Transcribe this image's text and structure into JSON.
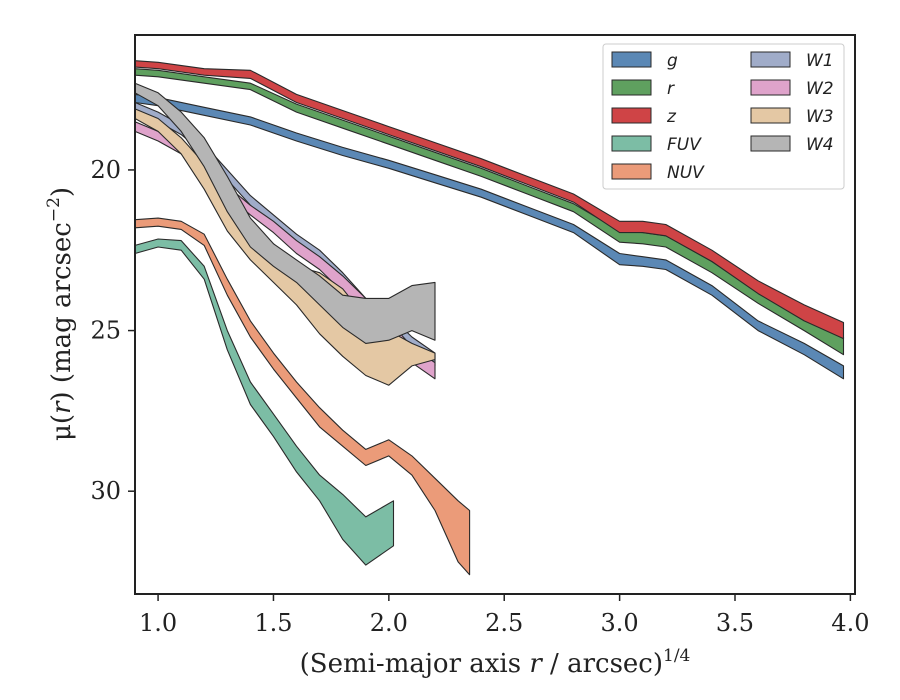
{
  "chart_data": {
    "type": "area",
    "xlabel": "(Semi-major axis r / arcsec)",
    "xlabel_parts": {
      "pre": "(Semi-major axis ",
      "var": "r",
      "post": " / arcsec)",
      "sup": "1/4"
    },
    "ylabel": "μ(r) (mag arcsec−2)",
    "ylabel_parts": {
      "pre": "μ(",
      "var": "r",
      "mid": ") (mag arcsec",
      "sup": "−2",
      "post": ")"
    },
    "xlim": [
      0.9,
      4.02
    ],
    "ylim": [
      33.2,
      15.8
    ],
    "y_inverted": true,
    "xticks": [
      1.0,
      1.5,
      2.0,
      2.5,
      3.0,
      3.5,
      4.0
    ],
    "xtick_labels": [
      "1.0",
      "1.5",
      "2.0",
      "2.5",
      "3.0",
      "3.5",
      "4.0"
    ],
    "yticks": [
      20,
      25,
      30
    ],
    "ytick_labels": [
      "20",
      "25",
      "30"
    ],
    "grid": false,
    "legend": {
      "position": "top-right",
      "columns": 2
    },
    "series": [
      {
        "name": "g",
        "color": "#5b88b5",
        "upper": [
          [
            0.9,
            17.65
          ],
          [
            1.0,
            17.75
          ],
          [
            1.2,
            18.05
          ],
          [
            1.4,
            18.35
          ],
          [
            1.6,
            18.85
          ],
          [
            1.8,
            19.3
          ],
          [
            2.0,
            19.7
          ],
          [
            2.2,
            20.15
          ],
          [
            2.4,
            20.6
          ],
          [
            2.6,
            21.15
          ],
          [
            2.8,
            21.7
          ],
          [
            3.0,
            22.6
          ],
          [
            3.1,
            22.7
          ],
          [
            3.2,
            22.8
          ],
          [
            3.4,
            23.6
          ],
          [
            3.6,
            24.7
          ],
          [
            3.8,
            25.4
          ],
          [
            3.97,
            26.1
          ]
        ],
        "lower": [
          [
            0.9,
            17.9
          ],
          [
            1.0,
            18.0
          ],
          [
            1.2,
            18.3
          ],
          [
            1.4,
            18.6
          ],
          [
            1.6,
            19.1
          ],
          [
            1.8,
            19.55
          ],
          [
            2.0,
            19.95
          ],
          [
            2.2,
            20.4
          ],
          [
            2.4,
            20.85
          ],
          [
            2.6,
            21.4
          ],
          [
            2.8,
            21.95
          ],
          [
            3.0,
            22.95
          ],
          [
            3.1,
            23.0
          ],
          [
            3.2,
            23.1
          ],
          [
            3.4,
            23.9
          ],
          [
            3.6,
            25.0
          ],
          [
            3.8,
            25.75
          ],
          [
            3.97,
            26.5
          ]
        ]
      },
      {
        "name": "r",
        "color": "#5fa05f",
        "upper": [
          [
            0.9,
            16.85
          ],
          [
            1.0,
            16.9
          ],
          [
            1.2,
            17.1
          ],
          [
            1.4,
            17.3
          ],
          [
            1.6,
            17.95
          ],
          [
            1.8,
            18.45
          ],
          [
            2.0,
            18.95
          ],
          [
            2.2,
            19.45
          ],
          [
            2.4,
            19.95
          ],
          [
            2.6,
            20.5
          ],
          [
            2.8,
            21.05
          ],
          [
            3.0,
            21.9
          ],
          [
            3.1,
            21.95
          ],
          [
            3.2,
            22.05
          ],
          [
            3.4,
            22.85
          ],
          [
            3.6,
            23.8
          ],
          [
            3.8,
            24.6
          ],
          [
            3.97,
            25.2
          ]
        ],
        "lower": [
          [
            0.9,
            17.05
          ],
          [
            1.0,
            17.1
          ],
          [
            1.2,
            17.3
          ],
          [
            1.4,
            17.5
          ],
          [
            1.6,
            18.2
          ],
          [
            1.8,
            18.7
          ],
          [
            2.0,
            19.2
          ],
          [
            2.2,
            19.7
          ],
          [
            2.4,
            20.2
          ],
          [
            2.6,
            20.75
          ],
          [
            2.8,
            21.3
          ],
          [
            3.0,
            22.25
          ],
          [
            3.1,
            22.3
          ],
          [
            3.2,
            22.4
          ],
          [
            3.4,
            23.2
          ],
          [
            3.6,
            24.15
          ],
          [
            3.8,
            25.0
          ],
          [
            3.97,
            25.75
          ]
        ]
      },
      {
        "name": "z",
        "color": "#cf4446",
        "upper": [
          [
            0.9,
            16.6
          ],
          [
            1.0,
            16.65
          ],
          [
            1.2,
            16.85
          ],
          [
            1.4,
            16.9
          ],
          [
            1.6,
            17.65
          ],
          [
            1.8,
            18.15
          ],
          [
            2.0,
            18.65
          ],
          [
            2.2,
            19.15
          ],
          [
            2.4,
            19.65
          ],
          [
            2.6,
            20.2
          ],
          [
            2.8,
            20.75
          ],
          [
            3.0,
            21.6
          ],
          [
            3.1,
            21.6
          ],
          [
            3.2,
            21.7
          ],
          [
            3.4,
            22.5
          ],
          [
            3.6,
            23.45
          ],
          [
            3.8,
            24.2
          ],
          [
            3.97,
            24.75
          ]
        ],
        "lower": [
          [
            0.9,
            16.8
          ],
          [
            1.0,
            16.85
          ],
          [
            1.2,
            17.05
          ],
          [
            1.4,
            17.15
          ],
          [
            1.6,
            17.9
          ],
          [
            1.8,
            18.4
          ],
          [
            2.0,
            18.9
          ],
          [
            2.2,
            19.4
          ],
          [
            2.4,
            19.9
          ],
          [
            2.6,
            20.45
          ],
          [
            2.8,
            21.0
          ],
          [
            3.0,
            21.95
          ],
          [
            3.1,
            21.95
          ],
          [
            3.2,
            22.05
          ],
          [
            3.4,
            22.85
          ],
          [
            3.6,
            23.85
          ],
          [
            3.8,
            24.7
          ],
          [
            3.97,
            25.25
          ]
        ]
      },
      {
        "name": "FUV",
        "color": "#7cbda5",
        "upper": [
          [
            0.9,
            22.35
          ],
          [
            1.0,
            22.15
          ],
          [
            1.1,
            22.2
          ],
          [
            1.2,
            23.0
          ],
          [
            1.3,
            25.0
          ],
          [
            1.4,
            26.6
          ],
          [
            1.5,
            27.6
          ],
          [
            1.6,
            28.6
          ],
          [
            1.7,
            29.5
          ],
          [
            1.8,
            30.1
          ],
          [
            1.9,
            30.8
          ],
          [
            2.02,
            30.3
          ]
        ],
        "lower": [
          [
            0.9,
            22.6
          ],
          [
            1.0,
            22.4
          ],
          [
            1.1,
            22.5
          ],
          [
            1.2,
            23.4
          ],
          [
            1.3,
            25.6
          ],
          [
            1.4,
            27.3
          ],
          [
            1.5,
            28.3
          ],
          [
            1.6,
            29.4
          ],
          [
            1.7,
            30.3
          ],
          [
            1.8,
            31.5
          ],
          [
            1.9,
            32.3
          ],
          [
            2.02,
            31.7
          ]
        ]
      },
      {
        "name": "NUV",
        "color": "#eb9b79",
        "upper": [
          [
            0.9,
            21.55
          ],
          [
            1.0,
            21.5
          ],
          [
            1.1,
            21.6
          ],
          [
            1.2,
            22.0
          ],
          [
            1.3,
            23.4
          ],
          [
            1.4,
            24.7
          ],
          [
            1.5,
            25.7
          ],
          [
            1.6,
            26.6
          ],
          [
            1.7,
            27.4
          ],
          [
            1.8,
            28.1
          ],
          [
            1.9,
            28.7
          ],
          [
            2.0,
            28.4
          ],
          [
            2.1,
            28.9
          ],
          [
            2.2,
            29.6
          ],
          [
            2.3,
            30.3
          ],
          [
            2.35,
            30.6
          ]
        ],
        "lower": [
          [
            0.9,
            21.8
          ],
          [
            1.0,
            21.75
          ],
          [
            1.1,
            21.85
          ],
          [
            1.2,
            22.35
          ],
          [
            1.3,
            23.9
          ],
          [
            1.4,
            25.2
          ],
          [
            1.5,
            26.2
          ],
          [
            1.6,
            27.1
          ],
          [
            1.7,
            28.0
          ],
          [
            1.8,
            28.6
          ],
          [
            1.9,
            29.2
          ],
          [
            2.0,
            28.9
          ],
          [
            2.1,
            29.5
          ],
          [
            2.2,
            30.6
          ],
          [
            2.3,
            32.2
          ],
          [
            2.35,
            32.6
          ]
        ]
      },
      {
        "name": "W1",
        "color": "#a0acc9",
        "upper": [
          [
            0.9,
            17.9
          ],
          [
            1.0,
            18.2
          ],
          [
            1.1,
            18.6
          ],
          [
            1.2,
            19.2
          ],
          [
            1.3,
            20.0
          ],
          [
            1.4,
            20.8
          ],
          [
            1.5,
            21.4
          ],
          [
            1.6,
            22.0
          ],
          [
            1.7,
            22.5
          ],
          [
            1.8,
            23.2
          ],
          [
            1.9,
            24.0
          ],
          [
            2.0,
            24.5
          ],
          [
            2.1,
            25.2
          ],
          [
            2.2,
            25.7
          ]
        ],
        "lower": [
          [
            0.9,
            18.2
          ],
          [
            1.0,
            18.5
          ],
          [
            1.1,
            18.9
          ],
          [
            1.2,
            19.5
          ],
          [
            1.3,
            20.3
          ],
          [
            1.4,
            21.1
          ],
          [
            1.5,
            21.8
          ],
          [
            1.6,
            22.4
          ],
          [
            1.7,
            22.9
          ],
          [
            1.8,
            23.6
          ],
          [
            1.9,
            24.4
          ],
          [
            2.0,
            24.9
          ],
          [
            2.1,
            25.6
          ],
          [
            2.2,
            26.1
          ]
        ]
      },
      {
        "name": "W2",
        "color": "#dfa3cb",
        "upper": [
          [
            0.9,
            18.5
          ],
          [
            1.0,
            18.8
          ],
          [
            1.1,
            19.2
          ],
          [
            1.2,
            19.8
          ],
          [
            1.3,
            20.5
          ],
          [
            1.4,
            21.1
          ],
          [
            1.5,
            21.6
          ],
          [
            1.6,
            22.2
          ],
          [
            1.7,
            22.7
          ],
          [
            1.8,
            23.3
          ],
          [
            1.9,
            24.0
          ],
          [
            2.0,
            24.7
          ],
          [
            2.1,
            25.5
          ],
          [
            2.2,
            26.0
          ]
        ],
        "lower": [
          [
            0.9,
            18.8
          ],
          [
            1.0,
            19.1
          ],
          [
            1.1,
            19.5
          ],
          [
            1.2,
            20.1
          ],
          [
            1.3,
            20.8
          ],
          [
            1.4,
            21.4
          ],
          [
            1.5,
            21.95
          ],
          [
            1.6,
            22.6
          ],
          [
            1.7,
            23.1
          ],
          [
            1.8,
            23.8
          ],
          [
            1.9,
            24.6
          ],
          [
            2.0,
            25.3
          ],
          [
            2.1,
            26.0
          ],
          [
            2.2,
            26.5
          ]
        ]
      },
      {
        "name": "W3",
        "color": "#e4c8a4",
        "upper": [
          [
            0.9,
            18.1
          ],
          [
            1.0,
            18.4
          ],
          [
            1.1,
            19.0
          ],
          [
            1.2,
            19.8
          ],
          [
            1.3,
            20.8
          ],
          [
            1.4,
            21.8
          ],
          [
            1.5,
            22.3
          ],
          [
            1.6,
            23.0
          ],
          [
            1.7,
            23.2
          ],
          [
            1.8,
            23.7
          ],
          [
            1.9,
            24.6
          ],
          [
            2.0,
            25.0
          ],
          [
            2.1,
            25.4
          ],
          [
            2.2,
            25.7
          ]
        ],
        "lower": [
          [
            0.9,
            18.4
          ],
          [
            1.0,
            18.8
          ],
          [
            1.1,
            19.5
          ],
          [
            1.2,
            20.6
          ],
          [
            1.3,
            21.9
          ],
          [
            1.4,
            22.8
          ],
          [
            1.5,
            23.5
          ],
          [
            1.6,
            24.2
          ],
          [
            1.7,
            25.1
          ],
          [
            1.8,
            25.8
          ],
          [
            1.9,
            26.4
          ],
          [
            2.0,
            26.7
          ],
          [
            2.1,
            26.1
          ],
          [
            2.2,
            25.9
          ]
        ]
      },
      {
        "name": "W4",
        "color": "#b5b5b5",
        "upper": [
          [
            0.9,
            17.3
          ],
          [
            1.0,
            17.6
          ],
          [
            1.1,
            18.2
          ],
          [
            1.2,
            19.0
          ],
          [
            1.3,
            20.2
          ],
          [
            1.4,
            21.5
          ],
          [
            1.5,
            22.3
          ],
          [
            1.6,
            22.8
          ],
          [
            1.7,
            23.3
          ],
          [
            1.8,
            23.9
          ],
          [
            1.9,
            24.0
          ],
          [
            2.0,
            24.0
          ],
          [
            2.1,
            23.6
          ],
          [
            2.2,
            23.5
          ]
        ],
        "lower": [
          [
            0.9,
            17.6
          ],
          [
            1.0,
            18.0
          ],
          [
            1.1,
            18.8
          ],
          [
            1.2,
            19.9
          ],
          [
            1.3,
            21.3
          ],
          [
            1.4,
            22.4
          ],
          [
            1.5,
            23.0
          ],
          [
            1.6,
            23.5
          ],
          [
            1.7,
            24.2
          ],
          [
            1.8,
            24.9
          ],
          [
            1.9,
            25.4
          ],
          [
            2.0,
            25.3
          ],
          [
            2.1,
            25.0
          ],
          [
            2.2,
            25.3
          ]
        ]
      }
    ]
  }
}
